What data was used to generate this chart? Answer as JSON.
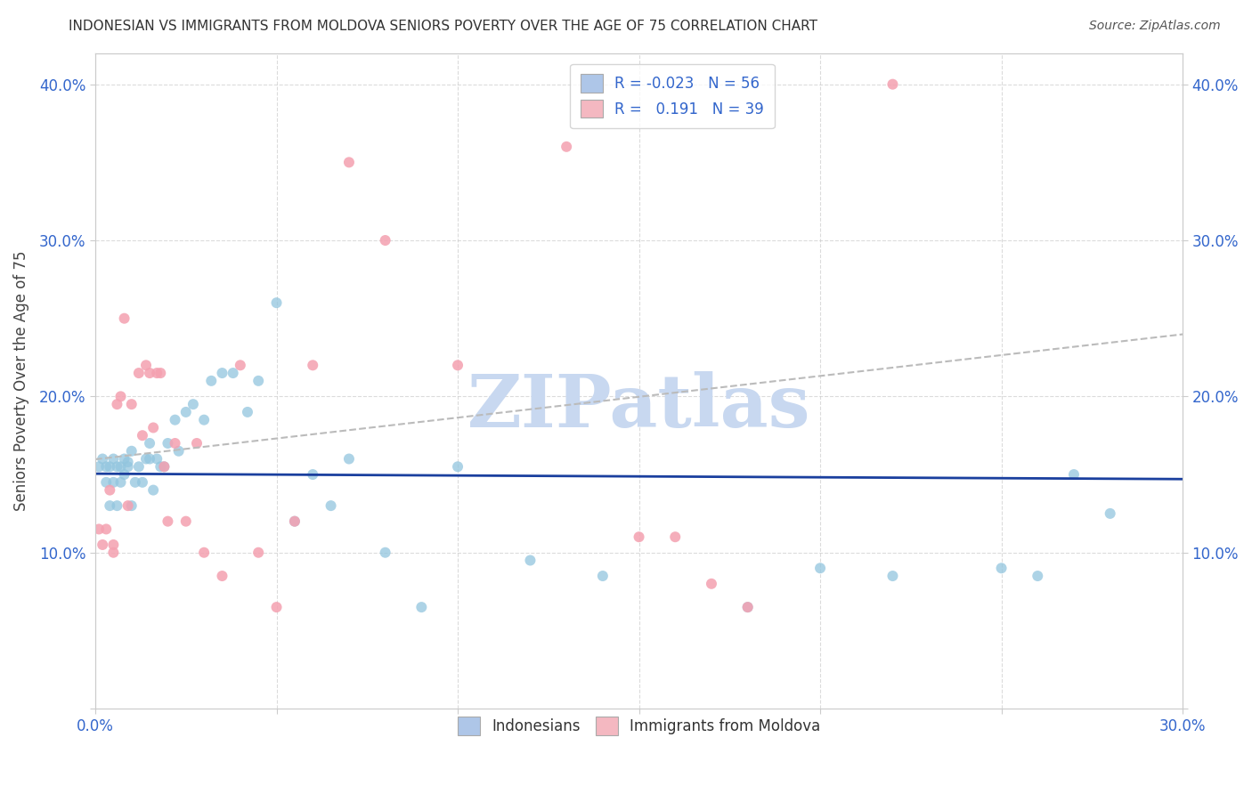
{
  "title": "INDONESIAN VS IMMIGRANTS FROM MOLDOVA SENIORS POVERTY OVER THE AGE OF 75 CORRELATION CHART",
  "source": "Source: ZipAtlas.com",
  "ylabel": "Seniors Poverty Over the Age of 75",
  "xlim": [
    0.0,
    0.3
  ],
  "ylim": [
    0.0,
    0.42
  ],
  "xticks": [
    0.0,
    0.05,
    0.1,
    0.15,
    0.2,
    0.25,
    0.3
  ],
  "xticklabels": [
    "0.0%",
    "",
    "",
    "",
    "",
    "",
    "30.0%"
  ],
  "yticks": [
    0.0,
    0.1,
    0.2,
    0.3,
    0.4
  ],
  "yticklabels": [
    "",
    "10.0%",
    "20.0%",
    "30.0%",
    "40.0%"
  ],
  "indonesian_color": "#92c5de",
  "moldova_color": "#f4a0b0",
  "indonesian_line_color": "#1a3f9e",
  "moldova_line_color": "#c44060",
  "ind_legend_color": "#aec6e8",
  "mol_legend_color": "#f4b8c1",
  "indonesian_scatter": {
    "x": [
      0.001,
      0.002,
      0.003,
      0.003,
      0.004,
      0.004,
      0.005,
      0.005,
      0.006,
      0.006,
      0.007,
      0.007,
      0.008,
      0.008,
      0.009,
      0.009,
      0.01,
      0.01,
      0.011,
      0.012,
      0.013,
      0.014,
      0.015,
      0.015,
      0.016,
      0.017,
      0.018,
      0.019,
      0.02,
      0.022,
      0.023,
      0.025,
      0.027,
      0.03,
      0.032,
      0.035,
      0.038,
      0.042,
      0.045,
      0.05,
      0.055,
      0.06,
      0.065,
      0.07,
      0.08,
      0.09,
      0.1,
      0.12,
      0.14,
      0.18,
      0.2,
      0.22,
      0.25,
      0.26,
      0.27,
      0.28
    ],
    "y": [
      0.155,
      0.16,
      0.155,
      0.145,
      0.155,
      0.13,
      0.16,
      0.145,
      0.155,
      0.13,
      0.155,
      0.145,
      0.16,
      0.15,
      0.158,
      0.155,
      0.165,
      0.13,
      0.145,
      0.155,
      0.145,
      0.16,
      0.16,
      0.17,
      0.14,
      0.16,
      0.155,
      0.155,
      0.17,
      0.185,
      0.165,
      0.19,
      0.195,
      0.185,
      0.21,
      0.215,
      0.215,
      0.19,
      0.21,
      0.26,
      0.12,
      0.15,
      0.13,
      0.16,
      0.1,
      0.065,
      0.155,
      0.095,
      0.085,
      0.065,
      0.09,
      0.085,
      0.09,
      0.085,
      0.15,
      0.125
    ]
  },
  "moldova_scatter": {
    "x": [
      0.001,
      0.002,
      0.003,
      0.004,
      0.005,
      0.005,
      0.006,
      0.007,
      0.008,
      0.009,
      0.01,
      0.012,
      0.013,
      0.014,
      0.015,
      0.016,
      0.017,
      0.018,
      0.019,
      0.02,
      0.022,
      0.025,
      0.028,
      0.03,
      0.035,
      0.04,
      0.045,
      0.05,
      0.055,
      0.06,
      0.07,
      0.08,
      0.1,
      0.13,
      0.15,
      0.16,
      0.17,
      0.18,
      0.22
    ],
    "y": [
      0.115,
      0.105,
      0.115,
      0.14,
      0.1,
      0.105,
      0.195,
      0.2,
      0.25,
      0.13,
      0.195,
      0.215,
      0.175,
      0.22,
      0.215,
      0.18,
      0.215,
      0.215,
      0.155,
      0.12,
      0.17,
      0.12,
      0.17,
      0.1,
      0.085,
      0.22,
      0.1,
      0.065,
      0.12,
      0.22,
      0.35,
      0.3,
      0.22,
      0.36,
      0.11,
      0.11,
      0.08,
      0.065,
      0.4
    ]
  },
  "background_color": "#ffffff",
  "grid_color": "#cccccc",
  "watermark": "ZIPatlas",
  "watermark_color": "#c8d8f0"
}
